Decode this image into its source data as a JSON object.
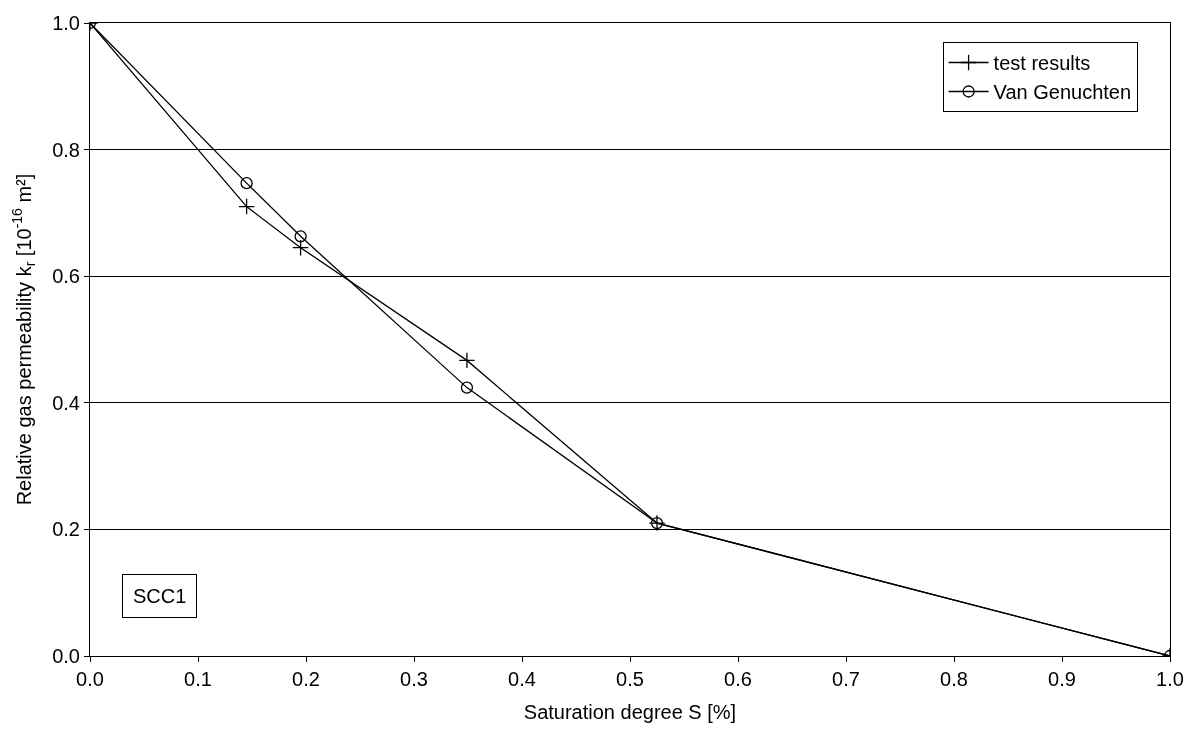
{
  "chart_data": {
    "type": "line",
    "xlabel": "Saturation degree S [%]",
    "ylabel": "Relative gas permeability k$_{r}$ [10$^{-16}$ m²]",
    "x": [
      0,
      0.145,
      0.195,
      0.349,
      0.525,
      1.0
    ],
    "series": [
      {
        "name": "test results",
        "color": "#000000",
        "marker": "cross",
        "values": [
          1.0,
          0.71,
          0.645,
          0.467,
          0.21,
          0.0
        ]
      },
      {
        "name": "Van Genuchten",
        "color": "#000000",
        "marker": "circle",
        "values": [
          1.0,
          0.747,
          0.663,
          0.424,
          0.21,
          0.0
        ]
      }
    ],
    "xlim": [
      0,
      1
    ],
    "ylim": [
      0,
      1
    ],
    "xticks": [
      {
        "value": 0,
        "label": "0.0"
      },
      0.1,
      0.2,
      0.3,
      0.4,
      0.5,
      0.6,
      0.7,
      0.8,
      0.9,
      {
        "value": 1,
        "label": "1.0"
      }
    ],
    "yticks": [
      {
        "value": 0,
        "label": "0.0"
      },
      0.2,
      0.4,
      0.6,
      0.8,
      {
        "value": 1,
        "label": "1.0"
      }
    ],
    "grid": "y",
    "legend": "top right",
    "line_style": "solid",
    "annotations": [
      "SCC1"
    ]
  }
}
